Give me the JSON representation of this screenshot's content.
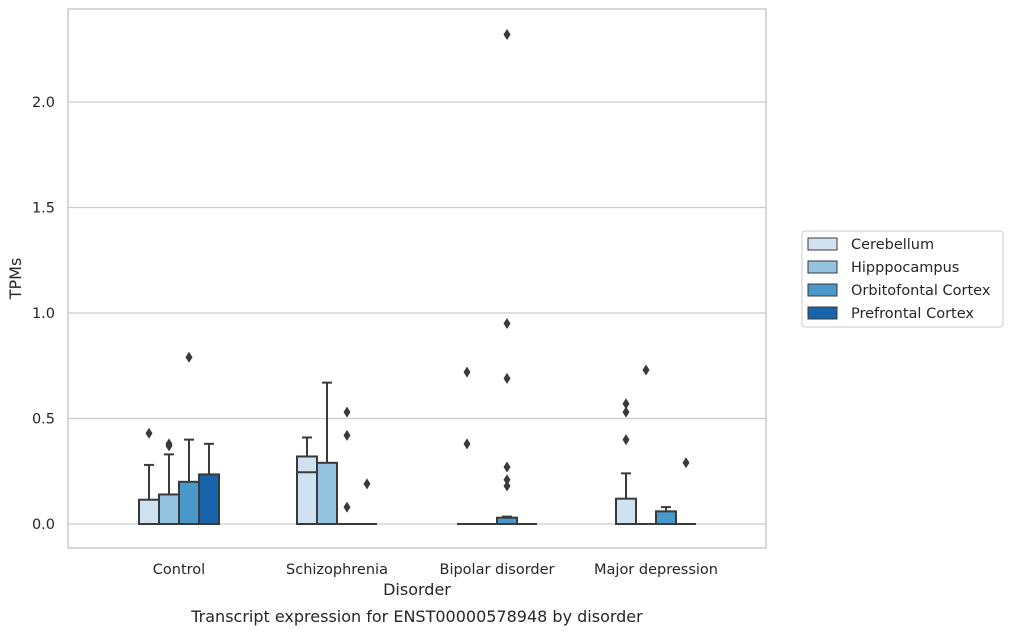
{
  "chart_data": {
    "type": "box",
    "title": "",
    "caption": "Transcript expression for ENST00000578948 by disorder",
    "xlabel": "Disorder",
    "ylabel": "TPMs",
    "ylim": [
      -0.11,
      2.45
    ],
    "yticks": [
      0.0,
      0.5,
      1.0,
      1.5,
      2.0
    ],
    "ytick_labels": [
      "0.0",
      "0.5",
      "1.0",
      "1.5",
      "2.0"
    ],
    "grid": "horizontal",
    "legend_position": "right",
    "categories": [
      "Control",
      "Schizophrenia",
      "Bipolar disorder",
      "Major depression"
    ],
    "series": [
      {
        "name": "Cerebellum",
        "color": "#d0e1f2",
        "boxes": [
          {
            "q1": 0.0,
            "median": 0.0,
            "q3": 0.115,
            "whisker_low": 0.0,
            "whisker_high": 0.28,
            "outliers": [
              0.43
            ]
          },
          {
            "q1": 0.0,
            "median": 0.245,
            "q3": 0.32,
            "whisker_low": 0.0,
            "whisker_high": 0.41,
            "outliers": []
          },
          {
            "q1": 0.0,
            "median": 0.0,
            "q3": 0.0,
            "whisker_low": 0.0,
            "whisker_high": 0.0,
            "outliers": [
              0.38,
              0.72
            ]
          },
          {
            "q1": 0.0,
            "median": 0.0,
            "q3": 0.12,
            "whisker_low": 0.0,
            "whisker_high": 0.24,
            "outliers": [
              0.4,
              0.53,
              0.57
            ]
          }
        ]
      },
      {
        "name": "Hipppocampus",
        "color": "#94c4df",
        "boxes": [
          {
            "q1": 0.0,
            "median": 0.0,
            "q3": 0.14,
            "whisker_low": 0.0,
            "whisker_high": 0.33,
            "outliers": [
              0.37,
              0.38
            ]
          },
          {
            "q1": 0.0,
            "median": 0.0,
            "q3": 0.29,
            "whisker_low": 0.0,
            "whisker_high": 0.67,
            "outliers": []
          },
          {
            "q1": 0.0,
            "median": 0.0,
            "q3": 0.0,
            "whisker_low": 0.0,
            "whisker_high": 0.0,
            "outliers": []
          },
          {
            "q1": 0.0,
            "median": 0.0,
            "q3": 0.0,
            "whisker_low": 0.0,
            "whisker_high": 0.0,
            "outliers": [
              0.73
            ]
          }
        ]
      },
      {
        "name": "Orbitofontal Cortex",
        "color": "#4a98c9",
        "boxes": [
          {
            "q1": 0.0,
            "median": 0.0,
            "q3": 0.2,
            "whisker_low": 0.0,
            "whisker_high": 0.4,
            "outliers": [
              0.79
            ]
          },
          {
            "q1": 0.0,
            "median": 0.0,
            "q3": 0.0,
            "whisker_low": 0.0,
            "whisker_high": 0.0,
            "outliers": [
              0.08,
              0.42,
              0.53
            ]
          },
          {
            "q1": 0.0,
            "median": 0.0,
            "q3": 0.03,
            "whisker_low": 0.0,
            "whisker_high": 0.035,
            "outliers": [
              0.18,
              0.21,
              0.27,
              0.69,
              0.95,
              2.32
            ]
          },
          {
            "q1": 0.0,
            "median": 0.0,
            "q3": 0.06,
            "whisker_low": 0.0,
            "whisker_high": 0.08,
            "outliers": []
          }
        ]
      },
      {
        "name": "Prefrontal Cortex",
        "color": "#1764ab",
        "boxes": [
          {
            "q1": 0.0,
            "median": 0.0,
            "q3": 0.235,
            "whisker_low": 0.0,
            "whisker_high": 0.38,
            "outliers": []
          },
          {
            "q1": 0.0,
            "median": 0.0,
            "q3": 0.0,
            "whisker_low": 0.0,
            "whisker_high": 0.0,
            "outliers": [
              0.19
            ]
          },
          {
            "q1": 0.0,
            "median": 0.0,
            "q3": 0.0,
            "whisker_low": 0.0,
            "whisker_high": 0.0,
            "outliers": []
          },
          {
            "q1": 0.0,
            "median": 0.0,
            "q3": 0.0,
            "whisker_low": 0.0,
            "whisker_high": 0.0,
            "outliers": [
              0.29
            ]
          }
        ]
      }
    ]
  }
}
